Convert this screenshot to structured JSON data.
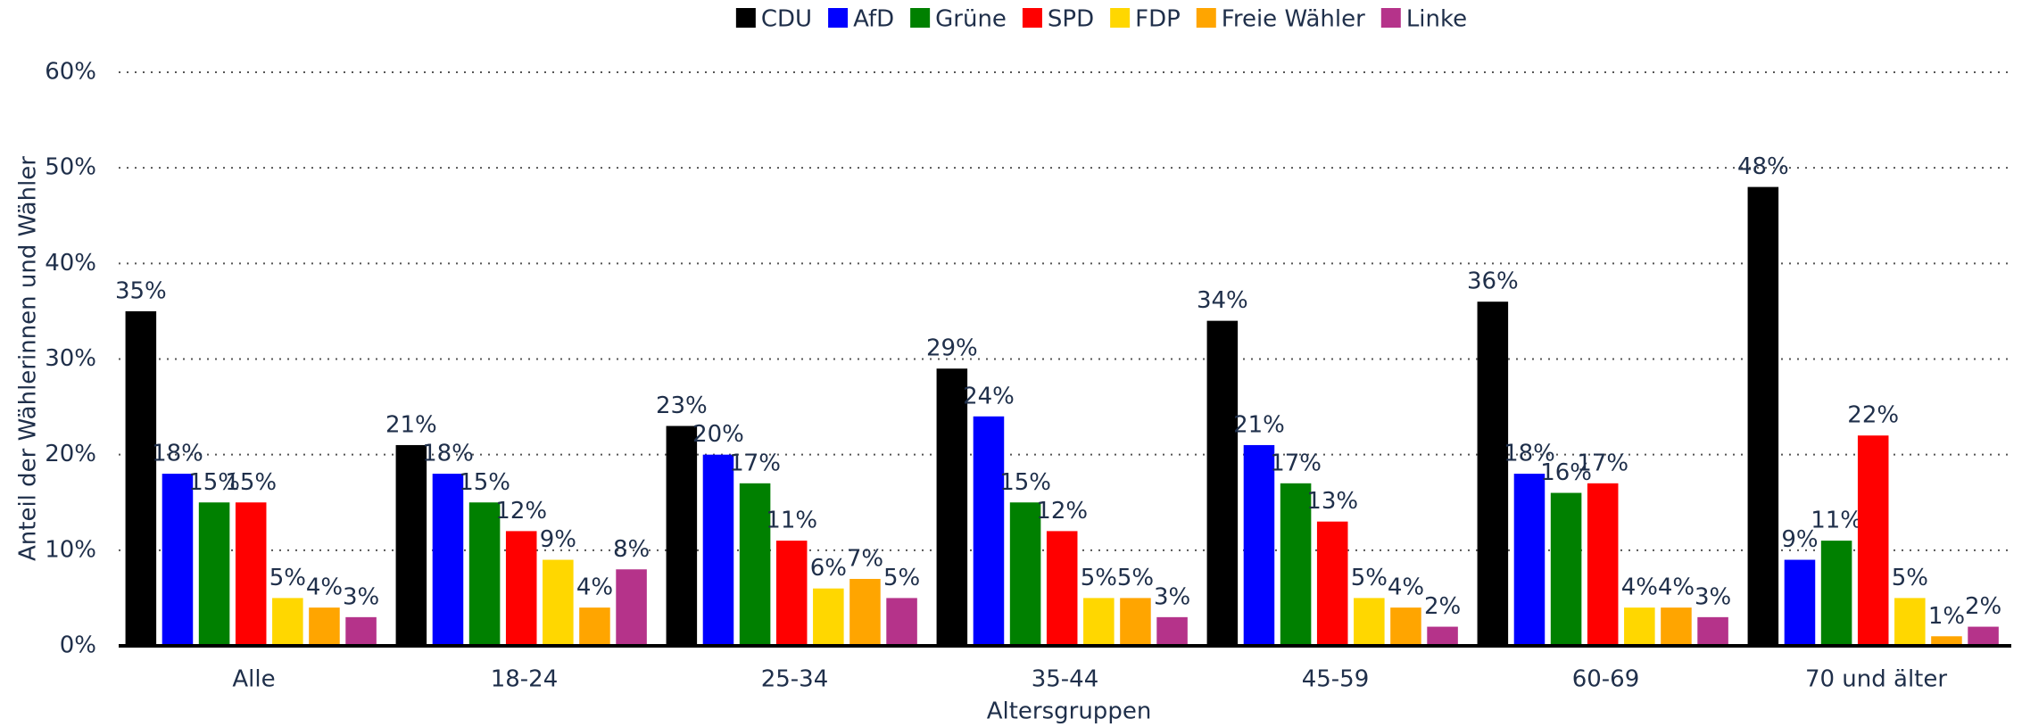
{
  "chart_data": {
    "type": "bar",
    "categories": [
      "Alle",
      "18-24",
      "25-34",
      "35-44",
      "45-59",
      "60-69",
      "70 und älter"
    ],
    "series": [
      {
        "name": "CDU",
        "color": "#000000",
        "values": [
          35,
          21,
          23,
          29,
          34,
          36,
          48
        ],
        "value_labels": [
          "35%",
          "21%",
          "23%",
          "29%",
          "34%",
          "36%",
          "48%"
        ]
      },
      {
        "name": "AfD",
        "color": "#0000ff",
        "values": [
          18,
          18,
          20,
          24,
          21,
          18,
          9
        ],
        "value_labels": [
          "18%",
          "18%",
          "20%",
          "24%",
          "21%",
          "18%",
          "9%"
        ]
      },
      {
        "name": "Grüne",
        "color": "#008000",
        "values": [
          15,
          15,
          17,
          15,
          17,
          16,
          11
        ],
        "value_labels": [
          "15%",
          "15%",
          "17%",
          "15%",
          "17%",
          "16%",
          "11%"
        ]
      },
      {
        "name": "SPD",
        "color": "#ff0000",
        "values": [
          15,
          12,
          11,
          12,
          13,
          17,
          22
        ],
        "value_labels": [
          "15%",
          "12%",
          "11%",
          "12%",
          "13%",
          "17%",
          "22%"
        ]
      },
      {
        "name": "FDP",
        "color": "#ffd700",
        "values": [
          5,
          9,
          6,
          5,
          5,
          4,
          5
        ],
        "value_labels": [
          "5%",
          "9%",
          "6%",
          "5%",
          "5%",
          "4%",
          "5%"
        ]
      },
      {
        "name": "Freie Wähler",
        "color": "#ffa500",
        "values": [
          4,
          4,
          7,
          5,
          4,
          4,
          1
        ],
        "value_labels": [
          "4%",
          "4%",
          "7%",
          "5%",
          "4%",
          "4%",
          "1%"
        ]
      },
      {
        "name": "Linke",
        "color": "#b5338a",
        "values": [
          3,
          8,
          5,
          3,
          2,
          3,
          2
        ],
        "value_labels": [
          "3%",
          "8%",
          "5%",
          "3%",
          "2%",
          "3%",
          "2%"
        ]
      }
    ],
    "x_label": "Altersgruppen",
    "y_label": "Anteil der Wählerinnen und Wähler",
    "ylim": [
      0,
      60
    ],
    "yticks": [
      {
        "value": 0,
        "label": "0%"
      },
      {
        "value": 10,
        "label": "10%"
      },
      {
        "value": 20,
        "label": "20%"
      },
      {
        "value": 30,
        "label": "30%"
      },
      {
        "value": 40,
        "label": "40%"
      },
      {
        "value": 50,
        "label": "50%"
      },
      {
        "value": 60,
        "label": "60%"
      }
    ],
    "grid": true,
    "legend": "top"
  }
}
